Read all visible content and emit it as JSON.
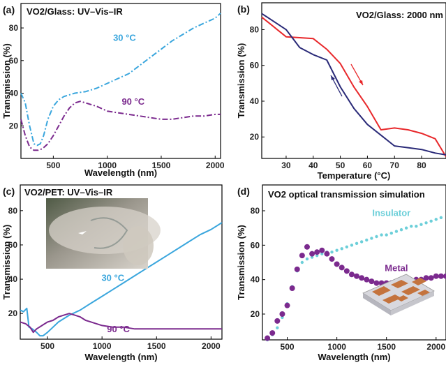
{
  "chart_data": [
    {
      "type": "line",
      "panel_label": "(a)",
      "title": "VO2/Glass: UV–Vis–IR",
      "xlabel": "Wavelength (nm)",
      "ylabel": "Transmission (%)",
      "xlim": [
        200,
        2050
      ],
      "ylim": [
        0,
        95
      ],
      "xticks": [
        500,
        1000,
        1500,
        2000
      ],
      "yticks": [
        20,
        40,
        60,
        80
      ],
      "series": [
        {
          "name": "30 °C",
          "color": "#3aa6dd",
          "style": "dashdot",
          "x": [
            200,
            240,
            280,
            320,
            350,
            380,
            410,
            450,
            500,
            550,
            600,
            700,
            800,
            900,
            1000,
            1100,
            1200,
            1300,
            1400,
            1500,
            1600,
            1700,
            1800,
            1900,
            2000,
            2050
          ],
          "y": [
            40,
            34,
            20,
            9,
            8,
            9,
            14,
            24,
            32,
            36,
            38,
            40,
            41,
            43,
            46,
            49,
            52,
            57,
            62,
            67,
            72,
            76,
            80,
            83,
            86,
            89
          ]
        },
        {
          "name": "90 °C",
          "color": "#7b2a8e",
          "style": "dashdot",
          "x": [
            200,
            240,
            280,
            320,
            360,
            400,
            450,
            500,
            550,
            600,
            650,
            700,
            750,
            800,
            900,
            1000,
            1100,
            1200,
            1300,
            1400,
            1500,
            1600,
            1700,
            1800,
            1900,
            2000,
            2050
          ],
          "y": [
            24,
            14,
            7,
            5,
            5,
            6,
            9,
            14,
            20,
            26,
            31,
            34,
            35,
            34,
            32,
            29,
            28,
            27,
            26,
            25,
            24,
            24,
            25,
            26,
            26,
            27,
            27
          ]
        }
      ]
    },
    {
      "type": "line",
      "panel_label": "(b)",
      "title": "VO2/Glass: 2000 nm",
      "xlabel": "Temperature (°C)",
      "ylabel": "Transmission (%)",
      "xlim": [
        21,
        89
      ],
      "ylim": [
        8,
        95
      ],
      "xticks": [
        30,
        40,
        50,
        60,
        70,
        80
      ],
      "yticks": [
        20,
        40,
        60,
        80
      ],
      "series": [
        {
          "name": "heating",
          "color": "#e8282b",
          "x": [
            21,
            30,
            40,
            45,
            50,
            55,
            60,
            65,
            70,
            75,
            80,
            85,
            89
          ],
          "y": [
            87,
            76,
            75,
            69,
            61,
            48,
            37,
            24,
            25,
            24,
            22,
            19,
            9
          ]
        },
        {
          "name": "cooling",
          "color": "#2a2a78",
          "x": [
            21,
            30,
            35,
            40,
            45,
            50,
            55,
            60,
            65,
            70,
            75,
            80,
            85,
            89
          ],
          "y": [
            89,
            80,
            70,
            66,
            63,
            48,
            36,
            27,
            21,
            15,
            14,
            13,
            11,
            10
          ]
        }
      ]
    },
    {
      "type": "line",
      "panel_label": "(c)",
      "title": "VO2/PET: UV–Vis–IR",
      "xlabel": "Wavelength (nm)",
      "ylabel": "Transmission (%)",
      "xlim": [
        250,
        2100
      ],
      "ylim": [
        5,
        95
      ],
      "xticks": [
        500,
        1000,
        1500,
        2000
      ],
      "yticks": [
        20,
        40,
        60,
        80
      ],
      "series": [
        {
          "name": "30 °C",
          "color": "#3aa6dd",
          "x": [
            250,
            280,
            310,
            330,
            360,
            400,
            430,
            460,
            500,
            550,
            600,
            700,
            800,
            900,
            1000,
            1100,
            1200,
            1300,
            1400,
            1500,
            1600,
            1700,
            1800,
            1900,
            2000,
            2100
          ],
          "y": [
            22,
            21,
            23,
            12,
            11,
            9,
            7,
            7,
            9,
            12,
            15,
            19,
            22,
            26,
            30,
            34,
            38,
            42,
            46,
            50,
            54,
            58,
            62,
            66,
            69,
            73
          ]
        },
        {
          "name": "90 °C",
          "color": "#7b2a8e",
          "x": [
            250,
            300,
            340,
            370,
            400,
            450,
            500,
            550,
            600,
            650,
            700,
            750,
            800,
            850,
            900,
            1000,
            1100,
            1200,
            1300,
            1400,
            1500,
            1600,
            1700,
            1800,
            1900,
            2000,
            2100
          ],
          "y": [
            15,
            14,
            12,
            9,
            11,
            13,
            15,
            16,
            18,
            19,
            20,
            19,
            18,
            16,
            15,
            13,
            12,
            12,
            11,
            11,
            11,
            11,
            11,
            11,
            11,
            11,
            11
          ]
        }
      ]
    },
    {
      "type": "scatter",
      "panel_label": "(d)",
      "title": "VO2 optical transmission simulation",
      "xlabel": "Wavelength (nm)",
      "ylabel": "Transmission (%)",
      "xlim": [
        250,
        2100
      ],
      "ylim": [
        5,
        95
      ],
      "xticks": [
        500,
        1000,
        1500,
        2000
      ],
      "yticks": [
        20,
        40,
        60,
        80
      ],
      "series": [
        {
          "name": "Insulator",
          "color": "#6ccfd9",
          "marker_size": 2.2,
          "x": [
            300,
            350,
            400,
            450,
            500,
            550,
            600,
            650,
            700,
            750,
            800,
            850,
            900,
            950,
            1000,
            1050,
            1100,
            1150,
            1200,
            1250,
            1300,
            1350,
            1400,
            1450,
            1500,
            1550,
            1600,
            1650,
            1700,
            1750,
            1800,
            1850,
            1900,
            1950,
            2000,
            2050
          ],
          "y": [
            5,
            8,
            12,
            18,
            26,
            36,
            45,
            50,
            52,
            53,
            54,
            55,
            56,
            56,
            57,
            58,
            59,
            60,
            61,
            62,
            63,
            64,
            65,
            66,
            66,
            67,
            68,
            69,
            70,
            71,
            71,
            72,
            73,
            74,
            75,
            76
          ]
        },
        {
          "name": "Metal",
          "color": "#7b2a8e",
          "marker_size": 4,
          "x": [
            300,
            350,
            400,
            450,
            500,
            550,
            600,
            650,
            700,
            750,
            800,
            850,
            900,
            950,
            1000,
            1050,
            1100,
            1150,
            1200,
            1250,
            1300,
            1350,
            1400,
            1450,
            1500,
            1550,
            1600,
            1650,
            1700,
            1750,
            1800,
            1850,
            1900,
            1950,
            2000,
            2050,
            2100
          ],
          "y": [
            6,
            9,
            16,
            20,
            25,
            35,
            46,
            54,
            59,
            55,
            56,
            57,
            55,
            52,
            49,
            47,
            45,
            43,
            42,
            41,
            40,
            39,
            38,
            38,
            38,
            38,
            38,
            38,
            39,
            39,
            40,
            40,
            41,
            41,
            42,
            42,
            42
          ]
        }
      ]
    }
  ]
}
